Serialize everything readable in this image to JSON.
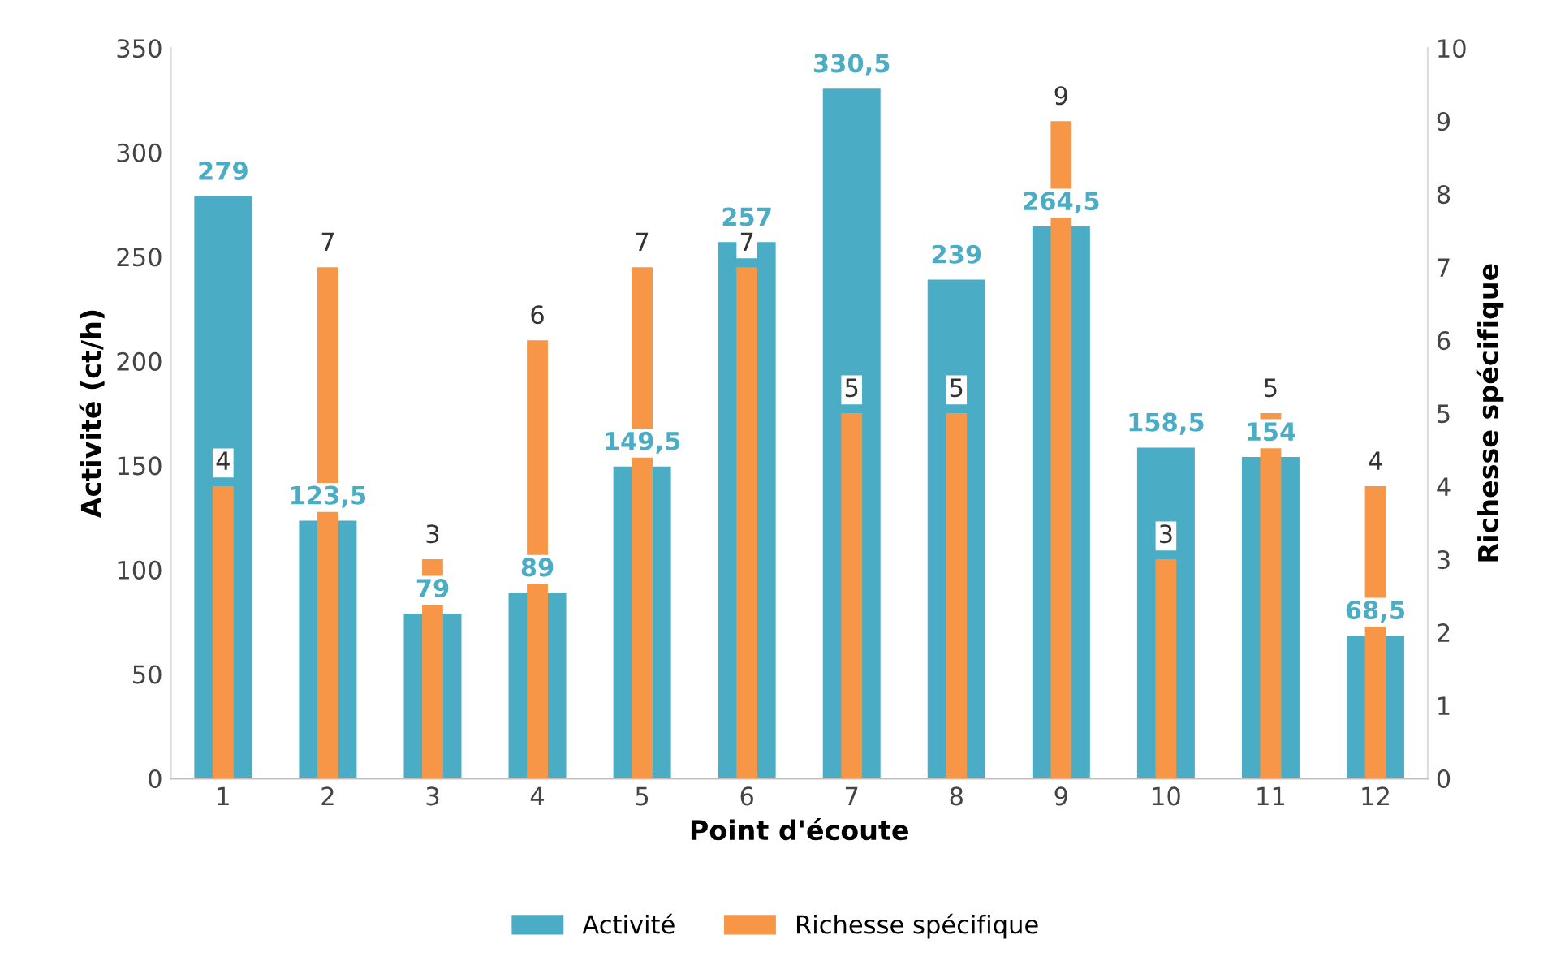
{
  "chart_data": {
    "type": "bar",
    "xlabel": "Point d'écoute",
    "ylabel": "Activité (ct/h)",
    "y2label": "Richesse spécifique",
    "categories": [
      "1",
      "2",
      "3",
      "4",
      "5",
      "6",
      "7",
      "8",
      "9",
      "10",
      "11",
      "12"
    ],
    "series": [
      {
        "name": "Activité",
        "color": "#4bacc6",
        "values": [
          279,
          123.5,
          79,
          89,
          149.5,
          257,
          330.5,
          239,
          264.5,
          158.5,
          154,
          68.5
        ],
        "value_labels": [
          "279",
          "123,5",
          "79",
          "89",
          "149,5",
          "257",
          "330,5",
          "239",
          "264,5",
          "158,5",
          "154",
          "68,5"
        ]
      },
      {
        "name": "Richesse spécifique",
        "color": "#f79646",
        "axis": "y2",
        "values": [
          4,
          7,
          3,
          6,
          7,
          7,
          5,
          5,
          9,
          3,
          5,
          4
        ],
        "value_labels": [
          "4",
          "7",
          "3",
          "6",
          "7",
          "7",
          "5",
          "5",
          "9",
          "3",
          "5",
          "4"
        ]
      }
    ],
    "ylim": [
      0,
      350
    ],
    "yticks": [
      0,
      50,
      100,
      150,
      200,
      250,
      300,
      350
    ],
    "y2lim": [
      0,
      10
    ],
    "y2ticks": [
      0,
      1,
      2,
      3,
      4,
      5,
      6,
      7,
      8,
      9,
      10
    ],
    "grid": false,
    "legend": "bottom"
  }
}
